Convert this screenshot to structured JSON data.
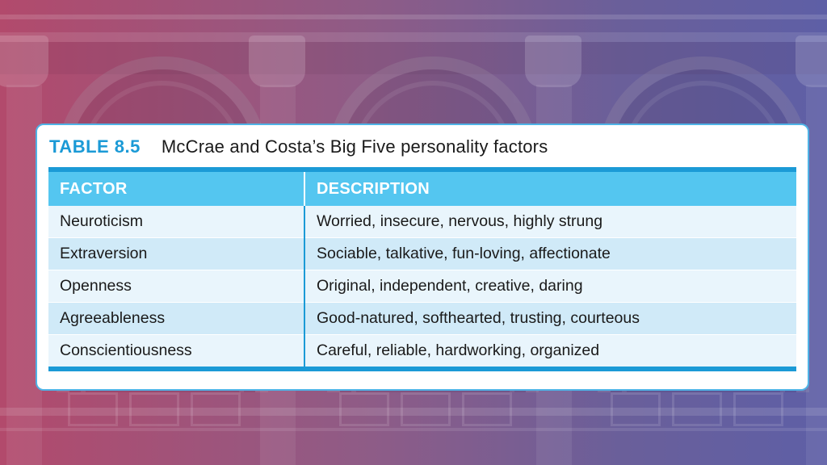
{
  "table": {
    "number": "TABLE 8.5",
    "title": "McCrae and Costa’s Big Five personality factors",
    "headers": [
      "FACTOR",
      "DESCRIPTION"
    ],
    "rows": [
      {
        "factor": "Neuroticism",
        "description": "Worried, insecure, nervous, highly strung"
      },
      {
        "factor": "Extraversion",
        "description": "Sociable, talkative, fun-loving, affectionate"
      },
      {
        "factor": "Openness",
        "description": "Original, independent, creative, daring"
      },
      {
        "factor": "Agreeableness",
        "description": "Good-natured, softhearted, trusting, courteous"
      },
      {
        "factor": "Conscientiousness",
        "description": "Careful, reliable, hardworking, organized"
      }
    ]
  },
  "colors": {
    "accent": "#1b9ad6",
    "header_fill": "#54c6f0",
    "row_light": "#e9f5fc",
    "row_dark": "#d0eaf8"
  }
}
